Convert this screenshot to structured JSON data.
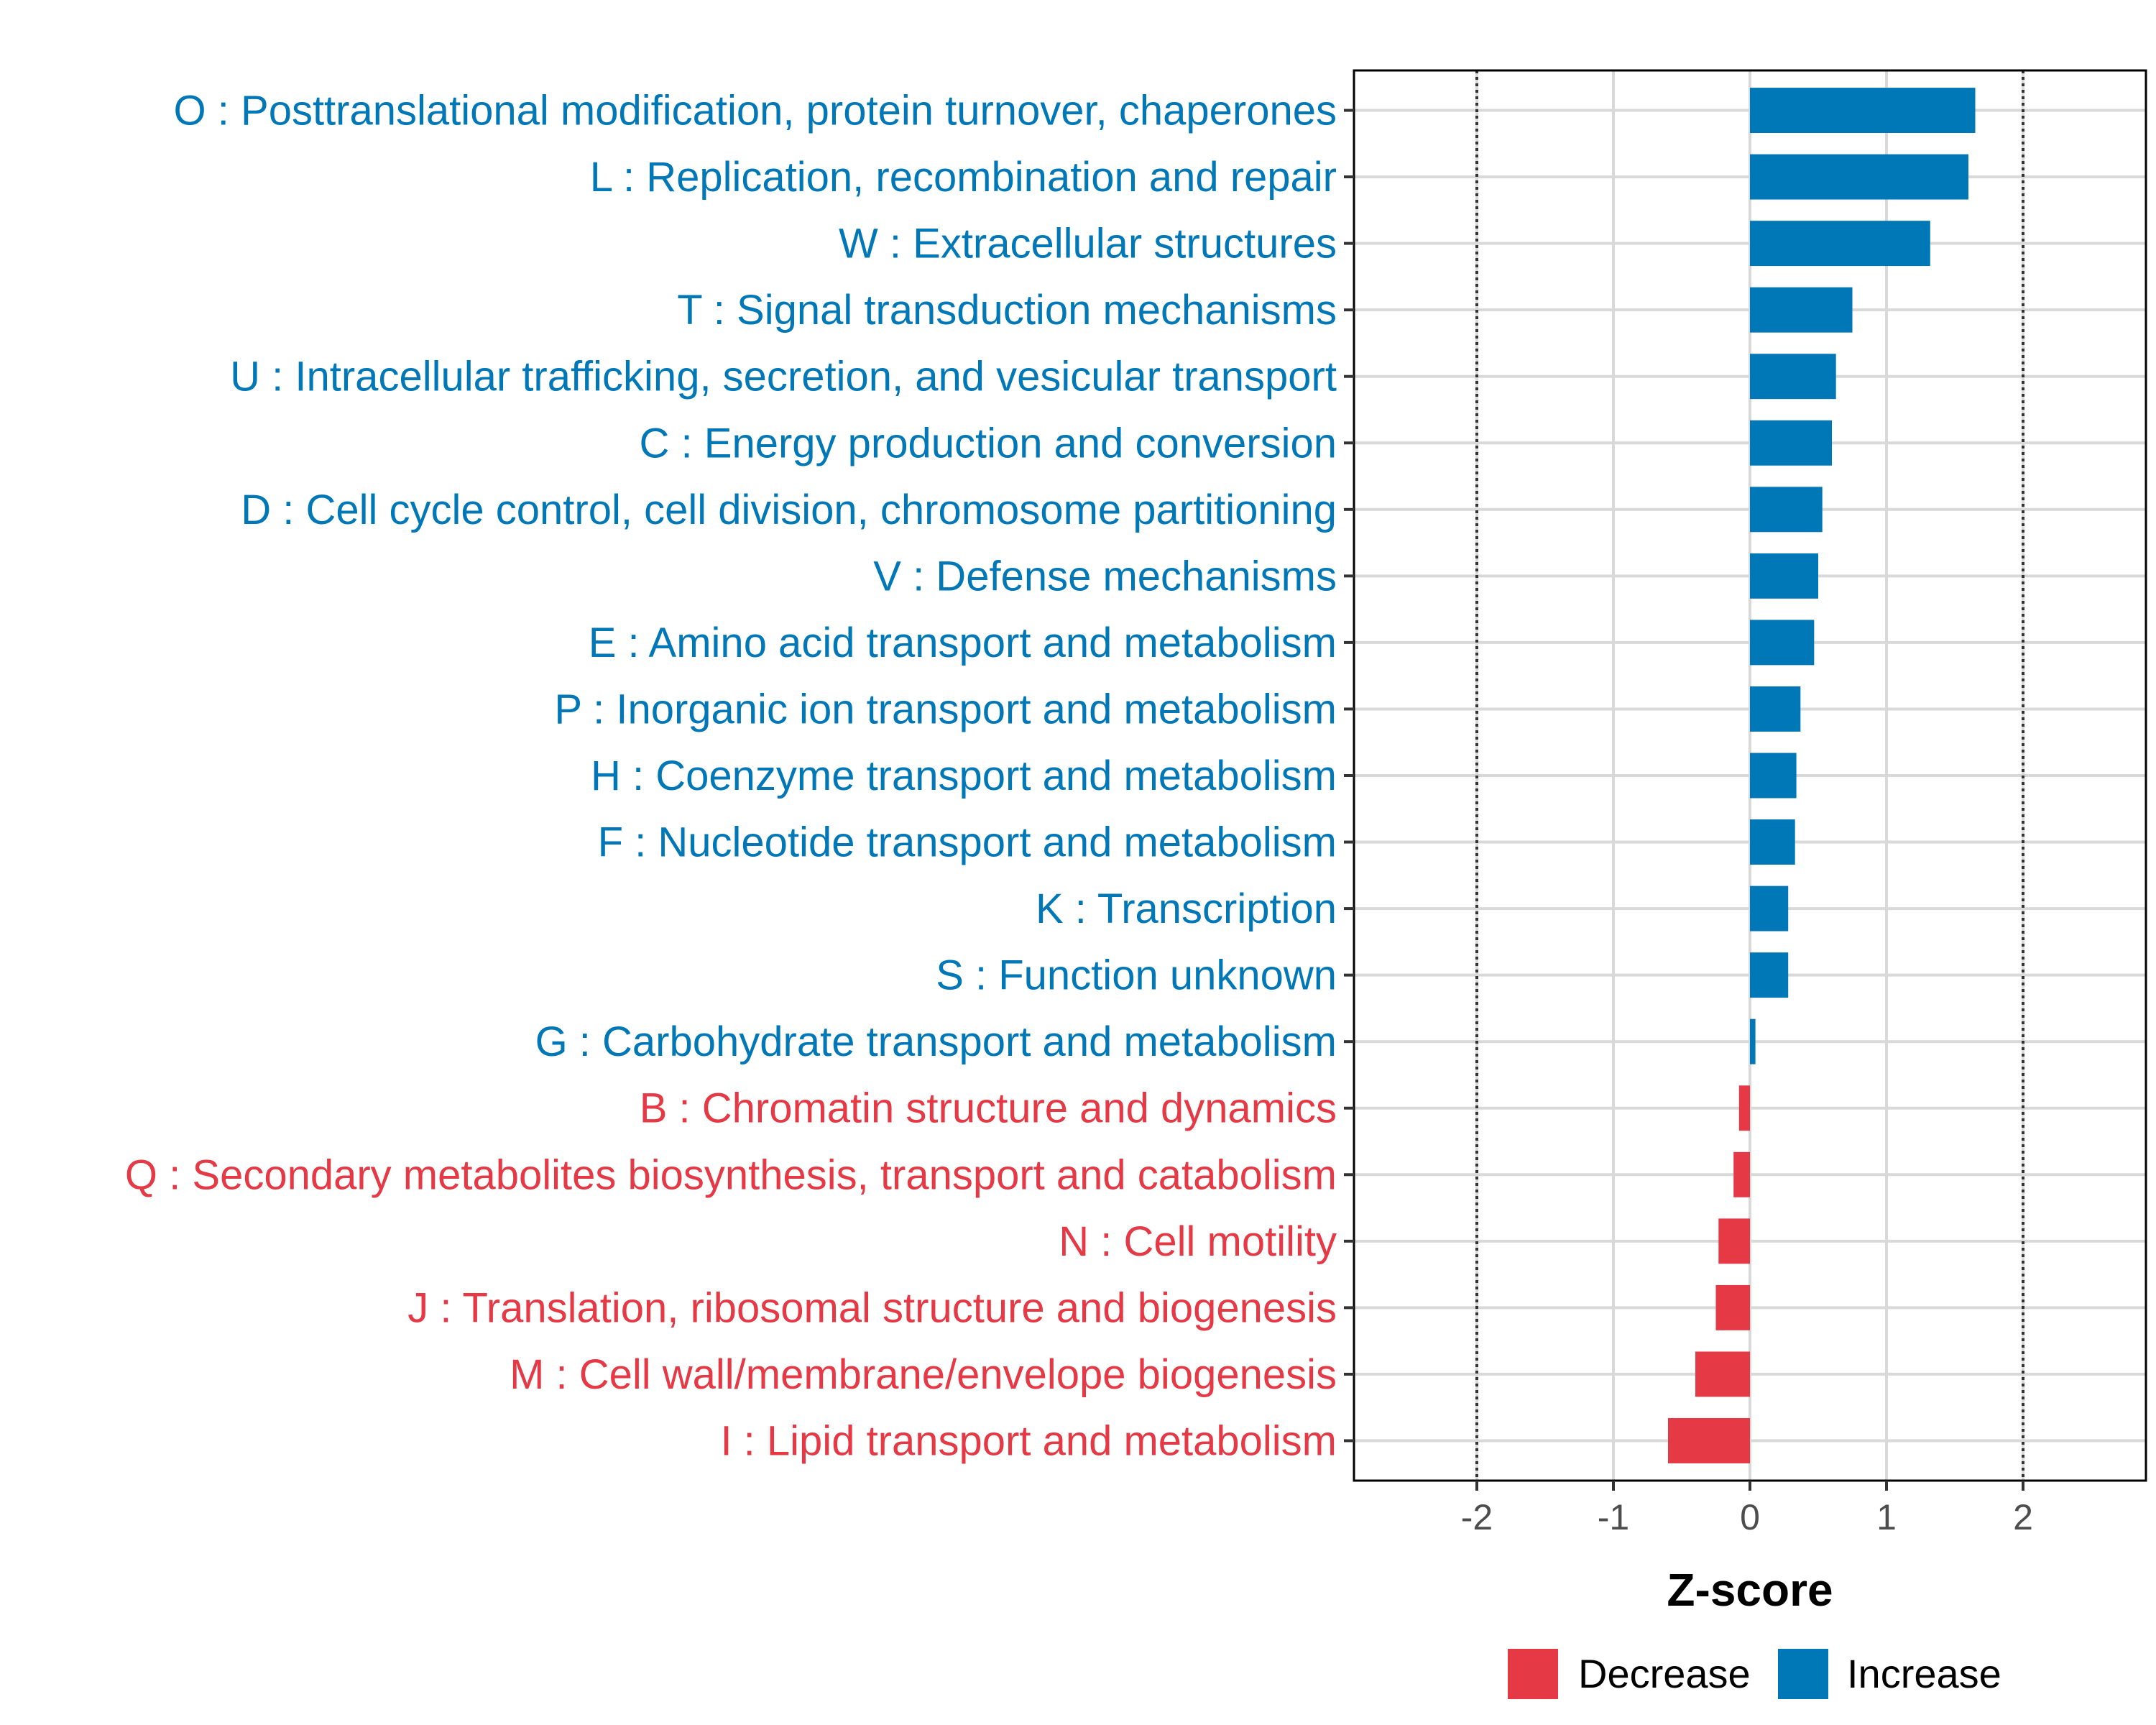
{
  "chart_data": {
    "type": "bar",
    "orientation": "horizontal",
    "title": "",
    "xlabel": "Z-score",
    "ylabel": "",
    "xlim": [
      -2.9,
      2.9
    ],
    "xticks": [
      -2,
      -1,
      0,
      1,
      2
    ],
    "xtick_labels": [
      "-2",
      "-1",
      "0",
      "1",
      "2"
    ],
    "threshold_lines": [
      -2,
      2
    ],
    "grid": true,
    "colors": {
      "Decrease": "#e63946",
      "Increase": "#0077b6"
    },
    "categories": [
      "O : Posttranslational modification, protein turnover, chaperones",
      "L : Replication, recombination and repair",
      "W : Extracellular structures",
      "T : Signal transduction mechanisms",
      "U : Intracellular trafficking, secretion, and vesicular transport",
      "C : Energy production and conversion",
      "D : Cell cycle control, cell division, chromosome partitioning",
      "V : Defense mechanisms",
      "E : Amino acid transport and metabolism",
      "P : Inorganic ion transport and metabolism",
      "H : Coenzyme transport and metabolism",
      "F : Nucleotide transport and metabolism",
      "K : Transcription",
      "S : Function unknown",
      "G : Carbohydrate transport and metabolism",
      "B : Chromatin structure and dynamics",
      "Q : Secondary metabolites biosynthesis, transport and catabolism",
      "N : Cell motility",
      "J : Translation, ribosomal structure and biogenesis",
      "M : Cell wall/membrane/envelope biogenesis",
      "I : Lipid transport and metabolism"
    ],
    "values": [
      1.65,
      1.6,
      1.32,
      0.75,
      0.63,
      0.6,
      0.53,
      0.5,
      0.47,
      0.37,
      0.34,
      0.33,
      0.28,
      0.28,
      0.04,
      -0.08,
      -0.12,
      -0.23,
      -0.25,
      -0.4,
      -0.6
    ],
    "groups": [
      "Increase",
      "Increase",
      "Increase",
      "Increase",
      "Increase",
      "Increase",
      "Increase",
      "Increase",
      "Increase",
      "Increase",
      "Increase",
      "Increase",
      "Increase",
      "Increase",
      "Increase",
      "Decrease",
      "Decrease",
      "Decrease",
      "Decrease",
      "Decrease",
      "Decrease"
    ],
    "legend": {
      "position": "bottom",
      "entries": [
        "Decrease",
        "Increase"
      ]
    }
  }
}
